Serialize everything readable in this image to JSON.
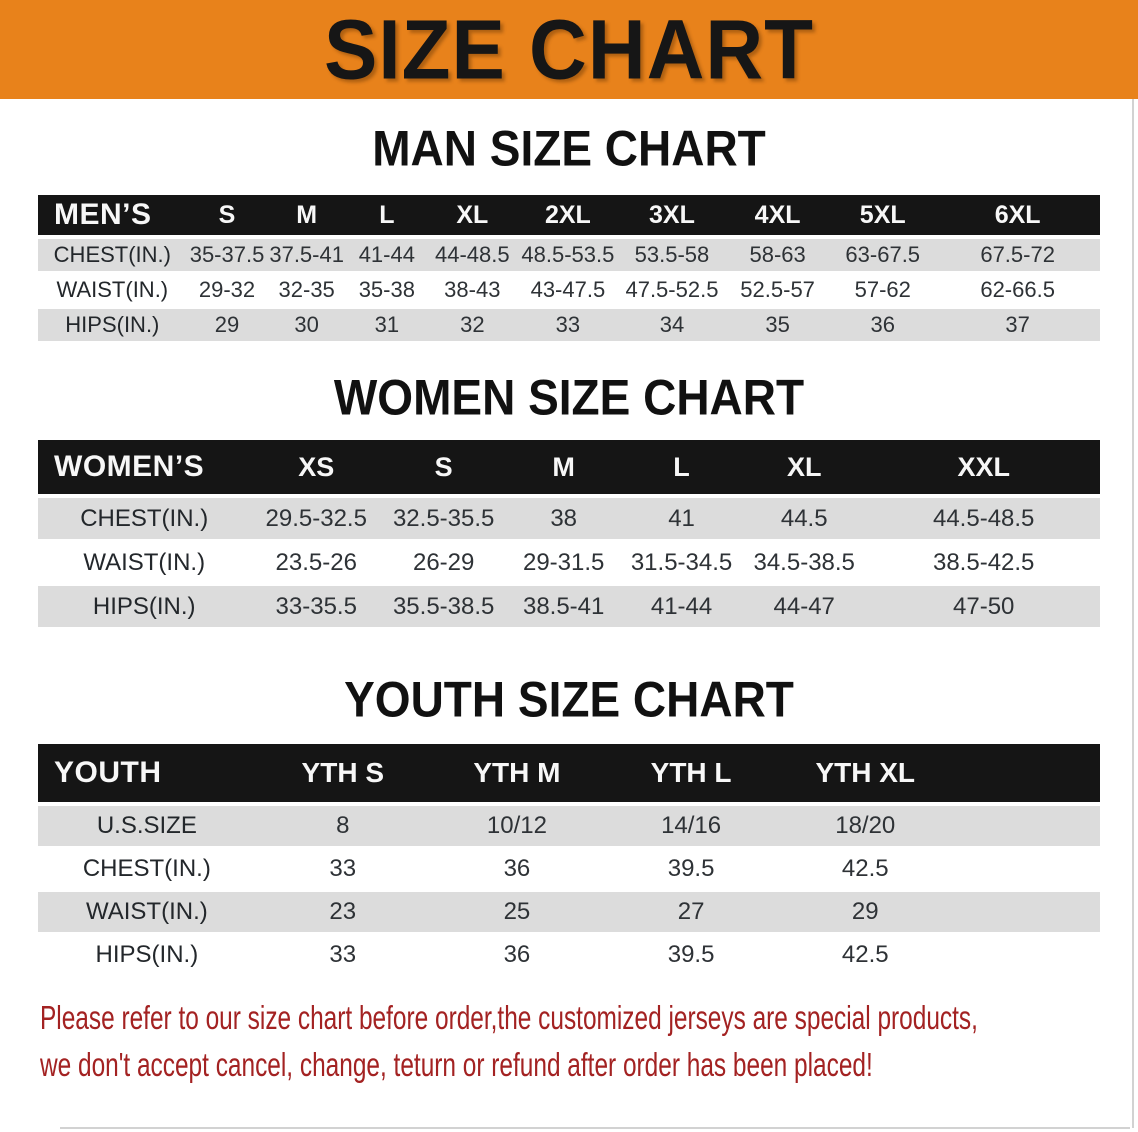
{
  "banner": {
    "title": "SIZE CHART"
  },
  "colors": {
    "banner_bg": "#E8821B",
    "table_header_bg": "#151515",
    "row_stripe": "#DCDCDC",
    "note_text": "#A32222"
  },
  "chart_data": [
    {
      "type": "table",
      "title": "MAN SIZE CHART",
      "columns": [
        "MEN’S",
        "S",
        "M",
        "L",
        "XL",
        "2XL",
        "3XL",
        "4XL",
        "5XL",
        "6XL"
      ],
      "rows": [
        {
          "label": "CHEST(IN.)",
          "values": [
            "35-37.5",
            "37.5-41",
            "41-44",
            "44-48.5",
            "48.5-53.5",
            "53.5-58",
            "58-63",
            "63-67.5",
            "67.5-72"
          ]
        },
        {
          "label": "WAIST(IN.)",
          "values": [
            "29-32",
            "32-35",
            "35-38",
            "38-43",
            "43-47.5",
            "47.5-52.5",
            "52.5-57",
            "57-62",
            "62-66.5"
          ]
        },
        {
          "label": "HIPS(IN.)",
          "values": [
            "29",
            "30",
            "31",
            "32",
            "33",
            "34",
            "35",
            "36",
            "37"
          ]
        }
      ]
    },
    {
      "type": "table",
      "title": "WOMEN SIZE CHART",
      "columns": [
        "WOMEN’S",
        "XS",
        "S",
        "M",
        "L",
        "XL",
        "XXL"
      ],
      "rows": [
        {
          "label": "CHEST(IN.)",
          "values": [
            "29.5-32.5",
            "32.5-35.5",
            "38",
            "41",
            "44.5",
            "44.5-48.5"
          ]
        },
        {
          "label": "WAIST(IN.)",
          "values": [
            "23.5-26",
            "26-29",
            "29-31.5",
            "31.5-34.5",
            "34.5-38.5",
            "38.5-42.5"
          ]
        },
        {
          "label": "HIPS(IN.)",
          "values": [
            "33-35.5",
            "35.5-38.5",
            "38.5-41",
            "41-44",
            "44-47",
            "47-50"
          ]
        }
      ]
    },
    {
      "type": "table",
      "title": "YOUTH SIZE CHART",
      "columns": [
        "YOUTH",
        "YTH S",
        "YTH M",
        "YTH L",
        "YTH XL"
      ],
      "rows": [
        {
          "label": "U.S.SIZE",
          "values": [
            "8",
            "10/12",
            "14/16",
            "18/20"
          ]
        },
        {
          "label": "CHEST(IN.)",
          "values": [
            "33",
            "36",
            "39.5",
            "42.5"
          ]
        },
        {
          "label": "WAIST(IN.)",
          "values": [
            "23",
            "25",
            "27",
            "29"
          ]
        },
        {
          "label": "HIPS(IN.)",
          "values": [
            "33",
            "36",
            "39.5",
            "42.5"
          ]
        }
      ]
    }
  ],
  "note": {
    "lines": [
      "Please refer to our size chart before order,the customized jerseys are special products,",
      "we don't accept cancel, change, teturn or refund after order has been placed!"
    ]
  }
}
